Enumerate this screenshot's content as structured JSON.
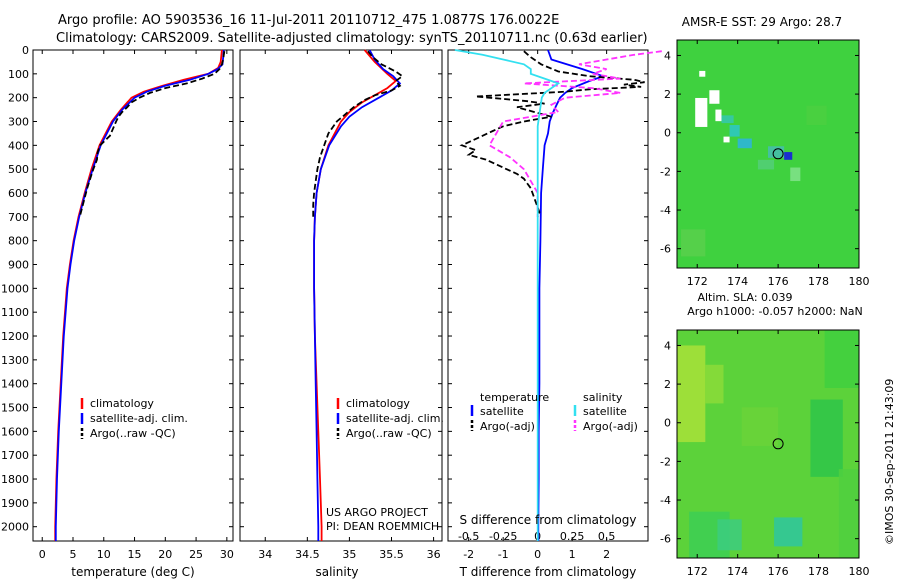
{
  "header": {
    "line1": "Argo profile: AO 5903536_16 11-Jul-2011 20110712_475 1.0877S 176.0022E",
    "line2": "Climatology: CARS2009. Satellite-adjusted climatology: synTS_20110711.nc (0.63d earlier)"
  },
  "depth_axis": {
    "ticks": [
      0,
      100,
      200,
      300,
      400,
      500,
      600,
      700,
      800,
      900,
      1000,
      1100,
      1200,
      1300,
      1400,
      1500,
      1600,
      1700,
      1800,
      1900,
      2000
    ],
    "range": [
      0,
      2060
    ]
  },
  "colors": {
    "climatology": "#ff0000",
    "satellite": "#0000ff",
    "argo": "#000000",
    "sat_s": "#33e0f0",
    "argo_s": "#ff33ff"
  },
  "legend_profile": {
    "climatology": "climatology",
    "satellite": "satellite-adj. clim.",
    "argo": "Argo(..raw -QC)"
  },
  "legend_diff": {
    "temperature": "temperature",
    "salinity": "salinity",
    "satellite": "satellite",
    "argo": "Argo(-adj)"
  },
  "project": {
    "line1": "US ARGO PROJECT",
    "line2": "PI: DEAN ROEMMICH"
  },
  "chart_data": [
    {
      "type": "line",
      "id": "temperature",
      "xlabel": "temperature (deg C)",
      "ylabel": "",
      "xlim": [
        -1.5,
        31
      ],
      "xticks": [
        0,
        5,
        10,
        15,
        20,
        25,
        30
      ],
      "ylim": [
        2060,
        0
      ],
      "series": [
        {
          "name": "climatology",
          "depth": [
            0,
            50,
            75,
            100,
            125,
            150,
            175,
            200,
            250,
            300,
            400,
            500,
            600,
            700,
            800,
            900,
            1000,
            1200,
            1400,
            1600,
            1800,
            2000,
            2060
          ],
          "values": [
            29.2,
            29.0,
            28.6,
            27.0,
            23.0,
            19.5,
            16.5,
            14.5,
            12.8,
            11.3,
            9.3,
            8.0,
            6.9,
            5.9,
            5.1,
            4.5,
            4.0,
            3.4,
            3.0,
            2.6,
            2.3,
            2.1,
            2.1
          ]
        },
        {
          "name": "satellite-adj. clim.",
          "depth": [
            0,
            30,
            60,
            80,
            100,
            125,
            150,
            175,
            200,
            250,
            300,
            400,
            500,
            600,
            700,
            800,
            900,
            1000,
            1200,
            1400,
            1600,
            1800,
            2000,
            2060
          ],
          "values": [
            29.5,
            29.4,
            29.3,
            28.5,
            27.0,
            24.0,
            20.0,
            17.0,
            15.0,
            13.0,
            11.5,
            9.5,
            8.2,
            7.0,
            6.0,
            5.2,
            4.6,
            4.1,
            3.5,
            3.1,
            2.7,
            2.4,
            2.2,
            2.2
          ]
        },
        {
          "name": "Argo(..raw -QC)",
          "depth": [
            5,
            20,
            40,
            60,
            80,
            100,
            120,
            140,
            160,
            180,
            200,
            220,
            240,
            260,
            280,
            300,
            330,
            360,
            400,
            430,
            460,
            500,
            540,
            580,
            620,
            660,
            700
          ],
          "values": [
            29.6,
            29.5,
            29.4,
            29.2,
            28.8,
            28.0,
            26.0,
            23.5,
            20.0,
            17.5,
            15.8,
            14.5,
            13.8,
            13.0,
            12.4,
            12.0,
            11.5,
            11.0,
            9.4,
            9.0,
            8.9,
            8.3,
            7.8,
            7.3,
            6.9,
            6.5,
            6.1
          ]
        }
      ]
    },
    {
      "type": "line",
      "id": "salinity",
      "xlabel": "salinity",
      "xlim": [
        33.7,
        36.1
      ],
      "xticks": [
        34,
        34.5,
        35,
        35.5,
        36
      ],
      "xtick_labels": [
        "34",
        "34.5",
        "35",
        "35.5",
        "36"
      ],
      "ylim": [
        2060,
        0
      ],
      "series": [
        {
          "name": "climatology",
          "depth": [
            0,
            50,
            100,
            130,
            160,
            190,
            220,
            260,
            300,
            400,
            500,
            600,
            700,
            800,
            1000,
            1200,
            1400,
            1600,
            1800,
            2000,
            2060
          ],
          "values": [
            35.18,
            35.3,
            35.45,
            35.55,
            35.45,
            35.3,
            35.15,
            35.0,
            34.9,
            34.75,
            34.66,
            34.61,
            34.59,
            34.58,
            34.58,
            34.59,
            34.61,
            34.63,
            34.65,
            34.67,
            34.67
          ]
        },
        {
          "name": "satellite-adj. clim.",
          "depth": [
            0,
            40,
            80,
            110,
            140,
            170,
            200,
            240,
            280,
            320,
            400,
            500,
            600,
            700,
            800,
            1000,
            1200,
            1400,
            1600,
            1800,
            2000,
            2060
          ],
          "values": [
            35.24,
            35.3,
            35.4,
            35.52,
            35.6,
            35.5,
            35.35,
            35.15,
            35.0,
            34.9,
            34.76,
            34.66,
            34.61,
            34.59,
            34.58,
            34.58,
            34.59,
            34.6,
            34.61,
            34.62,
            34.63,
            34.63
          ]
        },
        {
          "name": "Argo(..raw -QC)",
          "depth": [
            5,
            30,
            60,
            90,
            110,
            130,
            150,
            170,
            190,
            210,
            240,
            270,
            300,
            350,
            400,
            450,
            500,
            550,
            600,
            650,
            700
          ],
          "values": [
            35.22,
            35.28,
            35.38,
            35.55,
            35.63,
            35.55,
            35.6,
            35.5,
            35.3,
            35.18,
            35.05,
            34.95,
            34.85,
            34.75,
            34.7,
            34.65,
            34.62,
            34.6,
            34.58,
            34.57,
            34.57
          ]
        }
      ]
    },
    {
      "type": "line",
      "id": "differences",
      "xlabel": "T difference from climatology",
      "xlabel_top": "S difference from climatology",
      "xlim": [
        -2.6,
        3.2
      ],
      "xticks": [
        -2,
        -1,
        0,
        1,
        2
      ],
      "sticks": [
        -0.5,
        -0.25,
        0,
        0.25,
        0.5
      ],
      "stick_labels": [
        "-0.5",
        "-0.25",
        "0",
        "0.25",
        "0.5"
      ],
      "ylim": [
        2060,
        0
      ],
      "series": [
        {
          "name": "T satellite",
          "depth": [
            0,
            40,
            80,
            110,
            130,
            160,
            180,
            200,
            230,
            260,
            300,
            350,
            400,
            500,
            600,
            800,
            1000,
            1200,
            1400,
            1600,
            1800,
            2000,
            2060
          ],
          "values": [
            0.3,
            0.4,
            1.3,
            1.9,
            1.5,
            1.0,
            0.8,
            0.65,
            0.55,
            0.45,
            0.35,
            0.3,
            0.2,
            0.15,
            0.1,
            0.08,
            0.05,
            0.05,
            0.05,
            0.03,
            0.03,
            0.02,
            0.02
          ]
        },
        {
          "name": "T Argo(-adj)",
          "depth": [
            5,
            30,
            60,
            90,
            110,
            125,
            135,
            145,
            155,
            165,
            175,
            185,
            195,
            205,
            215,
            225,
            240,
            260,
            280,
            300,
            320,
            340,
            360,
            380,
            400,
            420,
            440,
            460,
            480,
            500,
            520,
            540,
            560,
            580,
            600,
            620,
            640,
            660,
            680,
            700
          ],
          "values": [
            -0.4,
            -0.2,
            0.1,
            0.6,
            1.5,
            2.8,
            3.1,
            2.5,
            3.0,
            1.5,
            0.8,
            -0.5,
            -1.8,
            -1.0,
            -0.3,
            0.2,
            -0.6,
            -0.1,
            0.4,
            -0.4,
            -1.0,
            -1.3,
            -1.6,
            -1.9,
            -2.2,
            -1.8,
            -2.0,
            -1.5,
            -1.2,
            -0.9,
            -0.6,
            -0.4,
            -0.3,
            -0.2,
            -0.15,
            -0.1,
            -0.05,
            0.0,
            0.05,
            0.0
          ]
        },
        {
          "name": "S satellite",
          "depth": [
            0,
            20,
            40,
            60,
            80,
            100,
            120,
            140,
            160,
            180,
            200,
            240,
            280,
            320,
            360,
            400,
            500,
            600,
            800,
            1000,
            1200,
            1400,
            1600,
            1800,
            2000,
            2060
          ],
          "values": [
            -0.6,
            -0.4,
            -0.25,
            -0.1,
            -0.05,
            -0.05,
            0.05,
            0.15,
            0.1,
            0.05,
            0.03,
            0.02,
            0.01,
            0.0,
            0.0,
            0.0,
            0.0,
            0.0,
            0.0,
            0.0,
            0.0,
            0.0,
            0.0,
            0.0,
            0.0,
            0.0
          ]
        },
        {
          "name": "S Argo(-adj)",
          "depth": [
            5,
            20,
            40,
            60,
            80,
            100,
            120,
            140,
            160,
            180,
            200,
            230,
            260,
            300,
            350,
            400,
            450,
            500,
            550,
            600,
            650,
            700
          ],
          "values": [
            0.9,
            0.7,
            0.5,
            0.3,
            0.5,
            0.4,
            0.6,
            -0.1,
            0.4,
            0.6,
            0.2,
            0.1,
            0.15,
            -0.25,
            -0.3,
            -0.35,
            -0.2,
            -0.1,
            -0.05,
            0.0,
            0.0,
            0.0
          ]
        }
      ]
    },
    {
      "type": "heatmap",
      "id": "sst",
      "title": "AMSR-E SST: 29 Argo: 28.7",
      "xlim": [
        171,
        180
      ],
      "ylim": [
        -7,
        4.8
      ],
      "xticks": [
        172,
        174,
        176,
        178,
        180
      ],
      "yticks": [
        -6,
        -4,
        -2,
        0,
        2,
        4
      ]
    },
    {
      "type": "heatmap",
      "id": "sla",
      "title_line1": "Altim. SLA: 0.039",
      "title_line2": "Argo h1000: -0.057 h2000: NaN",
      "xlim": [
        171,
        180
      ],
      "ylim": [
        -7,
        4.8
      ],
      "xticks": [
        172,
        174,
        176,
        178,
        180
      ],
      "yticks": [
        -6,
        -4,
        -2,
        0,
        2,
        4
      ]
    }
  ],
  "profile_marker": {
    "lon": 176.0,
    "lat": -1.09
  },
  "footer": {
    "stamp": "©IMOS 30-Sep-2011 21:43:09"
  }
}
